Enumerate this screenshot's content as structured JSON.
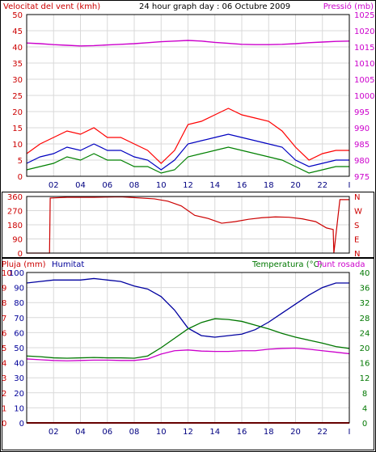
{
  "header": {
    "wind_title": "Velocitat del vent (kmh)",
    "graph_title": "24 hour graph day : 06 Octubre 2009",
    "pressure_title": "Pressió (mb)"
  },
  "colors": {
    "frame": "#000000",
    "grid": "#d9d9d9",
    "wind_gust": "#ff0000",
    "wind_avg": "#0000c0",
    "wind_speed": "#008000",
    "pressure": "#cc00cc",
    "direction": "#cc0000",
    "humidity": "#0000a0",
    "temperature": "#007700",
    "dewpoint": "#cc00cc",
    "rain": "#cc0000"
  },
  "chart_data": [
    {
      "type": "line",
      "panel": "wind_pressure",
      "title": "24 hour graph day : 06 Octubre 2009",
      "xlabel": "",
      "x_ticks": [
        "02",
        "04",
        "06",
        "08",
        "10",
        "12",
        "14",
        "16",
        "18",
        "20",
        "22",
        "I"
      ],
      "y_left_label": "Velocitat del vent (kmh)",
      "y_left_ticks": [
        0,
        5,
        10,
        15,
        20,
        25,
        30,
        35,
        40,
        45,
        50
      ],
      "y_left_lim": [
        0,
        50
      ],
      "y_right_label": "Pressió (mb)",
      "y_right_ticks": [
        975,
        980,
        985,
        990,
        995,
        1000,
        1005,
        1010,
        1015,
        1020,
        1025
      ],
      "y_right_lim": [
        975,
        1025
      ],
      "grid": true,
      "x_hours": [
        0,
        1,
        2,
        3,
        4,
        5,
        6,
        7,
        8,
        9,
        10,
        11,
        12,
        13,
        14,
        15,
        16,
        17,
        18,
        19,
        20,
        21,
        22,
        23,
        24
      ],
      "series": [
        {
          "key": "gust",
          "axis": "left",
          "values": [
            7,
            10,
            12,
            14,
            13,
            15,
            12,
            12,
            10,
            8,
            4,
            8,
            16,
            17,
            19,
            21,
            19,
            18,
            17,
            14,
            9,
            5,
            7,
            8,
            8
          ]
        },
        {
          "key": "avg",
          "axis": "left",
          "values": [
            4,
            6,
            7,
            9,
            8,
            10,
            8,
            8,
            6,
            5,
            2,
            5,
            10,
            11,
            12,
            13,
            12,
            11,
            10,
            9,
            5,
            3,
            4,
            5,
            5
          ]
        },
        {
          "key": "speed",
          "axis": "left",
          "values": [
            2,
            3,
            4,
            6,
            5,
            7,
            5,
            5,
            3,
            3,
            1,
            2,
            6,
            7,
            8,
            9,
            8,
            7,
            6,
            5,
            3,
            1,
            2,
            3,
            3
          ]
        },
        {
          "key": "pressure",
          "axis": "right",
          "values": [
            1016.2,
            1016.0,
            1015.7,
            1015.5,
            1015.3,
            1015.4,
            1015.6,
            1015.8,
            1016.0,
            1016.3,
            1016.6,
            1016.8,
            1017.0,
            1016.8,
            1016.4,
            1016.1,
            1015.8,
            1015.7,
            1015.7,
            1015.8,
            1016.0,
            1016.3,
            1016.5,
            1016.7,
            1016.8
          ]
        }
      ]
    },
    {
      "type": "line",
      "panel": "wind_direction",
      "x_ticks": [
        "02",
        "04",
        "06",
        "08",
        "10",
        "12",
        "14",
        "16",
        "18",
        "20",
        "22",
        "I"
      ],
      "y_left_ticks": [
        0,
        90,
        180,
        270,
        360
      ],
      "y_left_lim": [
        0,
        360
      ],
      "y_right_ticks": [
        "N",
        "E",
        "S",
        "W",
        "N"
      ],
      "grid": true,
      "x_hours": [
        0,
        1.7,
        1.75,
        3,
        5,
        7,
        8.5,
        9.5,
        10.5,
        11.5,
        12.5,
        13.5,
        14.5,
        15.5,
        16.5,
        17.5,
        18.5,
        19.5,
        20.5,
        21.5,
        22.3,
        22.8,
        22.85,
        23.3,
        24
      ],
      "series": [
        {
          "key": "direction",
          "values": [
            0,
            0,
            350,
            355,
            355,
            358,
            350,
            345,
            330,
            300,
            240,
            220,
            190,
            200,
            215,
            225,
            230,
            228,
            218,
            200,
            160,
            150,
            0,
            340,
            340
          ]
        }
      ]
    },
    {
      "type": "line",
      "panel": "humidity_temp",
      "x_ticks": [
        "02",
        "04",
        "06",
        "08",
        "10",
        "12",
        "14",
        "16",
        "18",
        "20",
        "22",
        "I"
      ],
      "legend": [
        "Pluja (mm)",
        "Humitat",
        "Temperatura (°C)",
        "Punt rosada"
      ],
      "y_rain_ticks": [
        0,
        1,
        2,
        3,
        4,
        5,
        6,
        7,
        8,
        9,
        10
      ],
      "y_rain_lim": [
        0,
        10
      ],
      "y_hum_ticks": [
        0,
        10,
        20,
        30,
        40,
        50,
        60,
        70,
        80,
        90,
        100
      ],
      "y_hum_lim": [
        0,
        100
      ],
      "y_temp_ticks": [
        0,
        4,
        8,
        12,
        16,
        20,
        24,
        28,
        32,
        36,
        40
      ],
      "y_temp_lim": [
        0,
        40
      ],
      "grid": true,
      "x_hours": [
        0,
        1,
        2,
        3,
        4,
        5,
        6,
        7,
        8,
        9,
        10,
        11,
        12,
        13,
        14,
        15,
        16,
        17,
        18,
        19,
        20,
        21,
        22,
        23,
        24
      ],
      "series": [
        {
          "key": "rain",
          "axis": "rain",
          "values": [
            0,
            0,
            0,
            0,
            0,
            0,
            0,
            0,
            0,
            0,
            0,
            0,
            0,
            0,
            0,
            0,
            0,
            0,
            0,
            0,
            0,
            0,
            0,
            0,
            0
          ]
        },
        {
          "key": "humidity",
          "axis": "hum",
          "values": [
            93,
            94,
            95,
            95,
            95,
            96,
            95,
            94,
            91,
            89,
            84,
            75,
            63,
            58,
            57,
            58,
            59,
            62,
            67,
            73,
            79,
            85,
            90,
            93,
            93
          ]
        },
        {
          "key": "temperature",
          "axis": "temp",
          "values": [
            17.8,
            17.6,
            17.3,
            17.2,
            17.3,
            17.4,
            17.3,
            17.3,
            17.2,
            17.8,
            20.0,
            22.5,
            25.0,
            26.7,
            27.7,
            27.5,
            27.0,
            26.0,
            25.0,
            23.8,
            22.8,
            22.0,
            21.2,
            20.3,
            19.8
          ]
        },
        {
          "key": "dewpoint",
          "axis": "temp",
          "values": [
            17.0,
            16.8,
            16.6,
            16.5,
            16.6,
            16.7,
            16.7,
            16.6,
            16.6,
            17.0,
            18.3,
            19.2,
            19.4,
            19.1,
            19.0,
            19.0,
            19.2,
            19.2,
            19.6,
            19.8,
            19.9,
            19.6,
            19.2,
            18.8,
            18.4
          ]
        }
      ]
    }
  ],
  "rain_axis_label": "Pluja (mm)",
  "humidity_label": "Humitat",
  "temperature_label": "Temperatura (°C)",
  "dewpoint_label": "Punt rosada"
}
